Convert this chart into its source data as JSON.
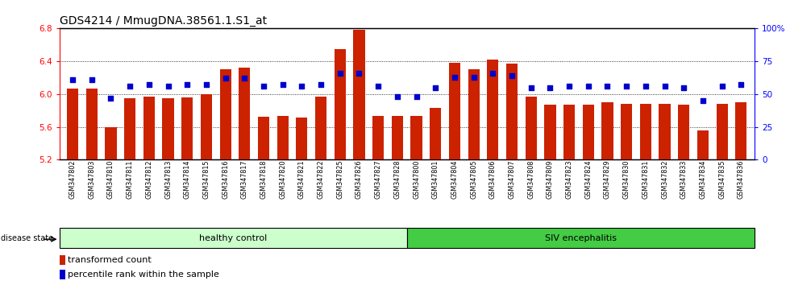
{
  "title": "GDS4214 / MmugDNA.38561.1.S1_at",
  "samples": [
    "GSM347802",
    "GSM347803",
    "GSM347810",
    "GSM347811",
    "GSM347812",
    "GSM347813",
    "GSM347814",
    "GSM347815",
    "GSM347816",
    "GSM347817",
    "GSM347818",
    "GSM347820",
    "GSM347821",
    "GSM347822",
    "GSM347825",
    "GSM347826",
    "GSM347827",
    "GSM347828",
    "GSM347800",
    "GSM347801",
    "GSM347804",
    "GSM347805",
    "GSM347806",
    "GSM347807",
    "GSM347808",
    "GSM347809",
    "GSM347823",
    "GSM347824",
    "GSM347829",
    "GSM347830",
    "GSM347831",
    "GSM347832",
    "GSM347833",
    "GSM347834",
    "GSM347835",
    "GSM347836"
  ],
  "transformed_count": [
    6.07,
    6.07,
    5.6,
    5.95,
    5.97,
    5.95,
    5.96,
    6.0,
    6.3,
    6.32,
    5.72,
    5.73,
    5.71,
    5.97,
    6.55,
    6.78,
    5.73,
    5.73,
    5.73,
    5.83,
    6.38,
    6.3,
    6.42,
    6.37,
    5.97,
    5.87,
    5.87,
    5.87,
    5.9,
    5.88,
    5.88,
    5.88,
    5.87,
    5.56,
    5.88,
    5.9
  ],
  "percentile_rank": [
    61,
    61,
    47,
    56,
    57,
    56,
    57,
    57,
    62,
    62,
    56,
    57,
    56,
    57,
    66,
    66,
    56,
    48,
    48,
    55,
    63,
    63,
    66,
    64,
    55,
    55,
    56,
    56,
    56,
    56,
    56,
    56,
    55,
    45,
    56,
    57
  ],
  "healthy_control_count": 18,
  "ylim_left": [
    5.2,
    6.8
  ],
  "ylim_right": [
    0,
    100
  ],
  "yticks_left": [
    5.2,
    5.6,
    6.0,
    6.4,
    6.8
  ],
  "yticks_right": [
    0,
    25,
    50,
    75,
    100
  ],
  "bar_color": "#cc2200",
  "dot_color": "#0000cc",
  "healthy_bg": "#ccffcc",
  "siv_bg": "#44cc44",
  "label_healthy": "healthy control",
  "label_siv": "SIV encephalitis",
  "disease_state_label": "disease state",
  "legend_bar_label": "transformed count",
  "legend_dot_label": "percentile rank within the sample",
  "title_fontsize": 10,
  "tick_fontsize": 7.5,
  "band_fontsize": 8,
  "legend_fontsize": 8
}
